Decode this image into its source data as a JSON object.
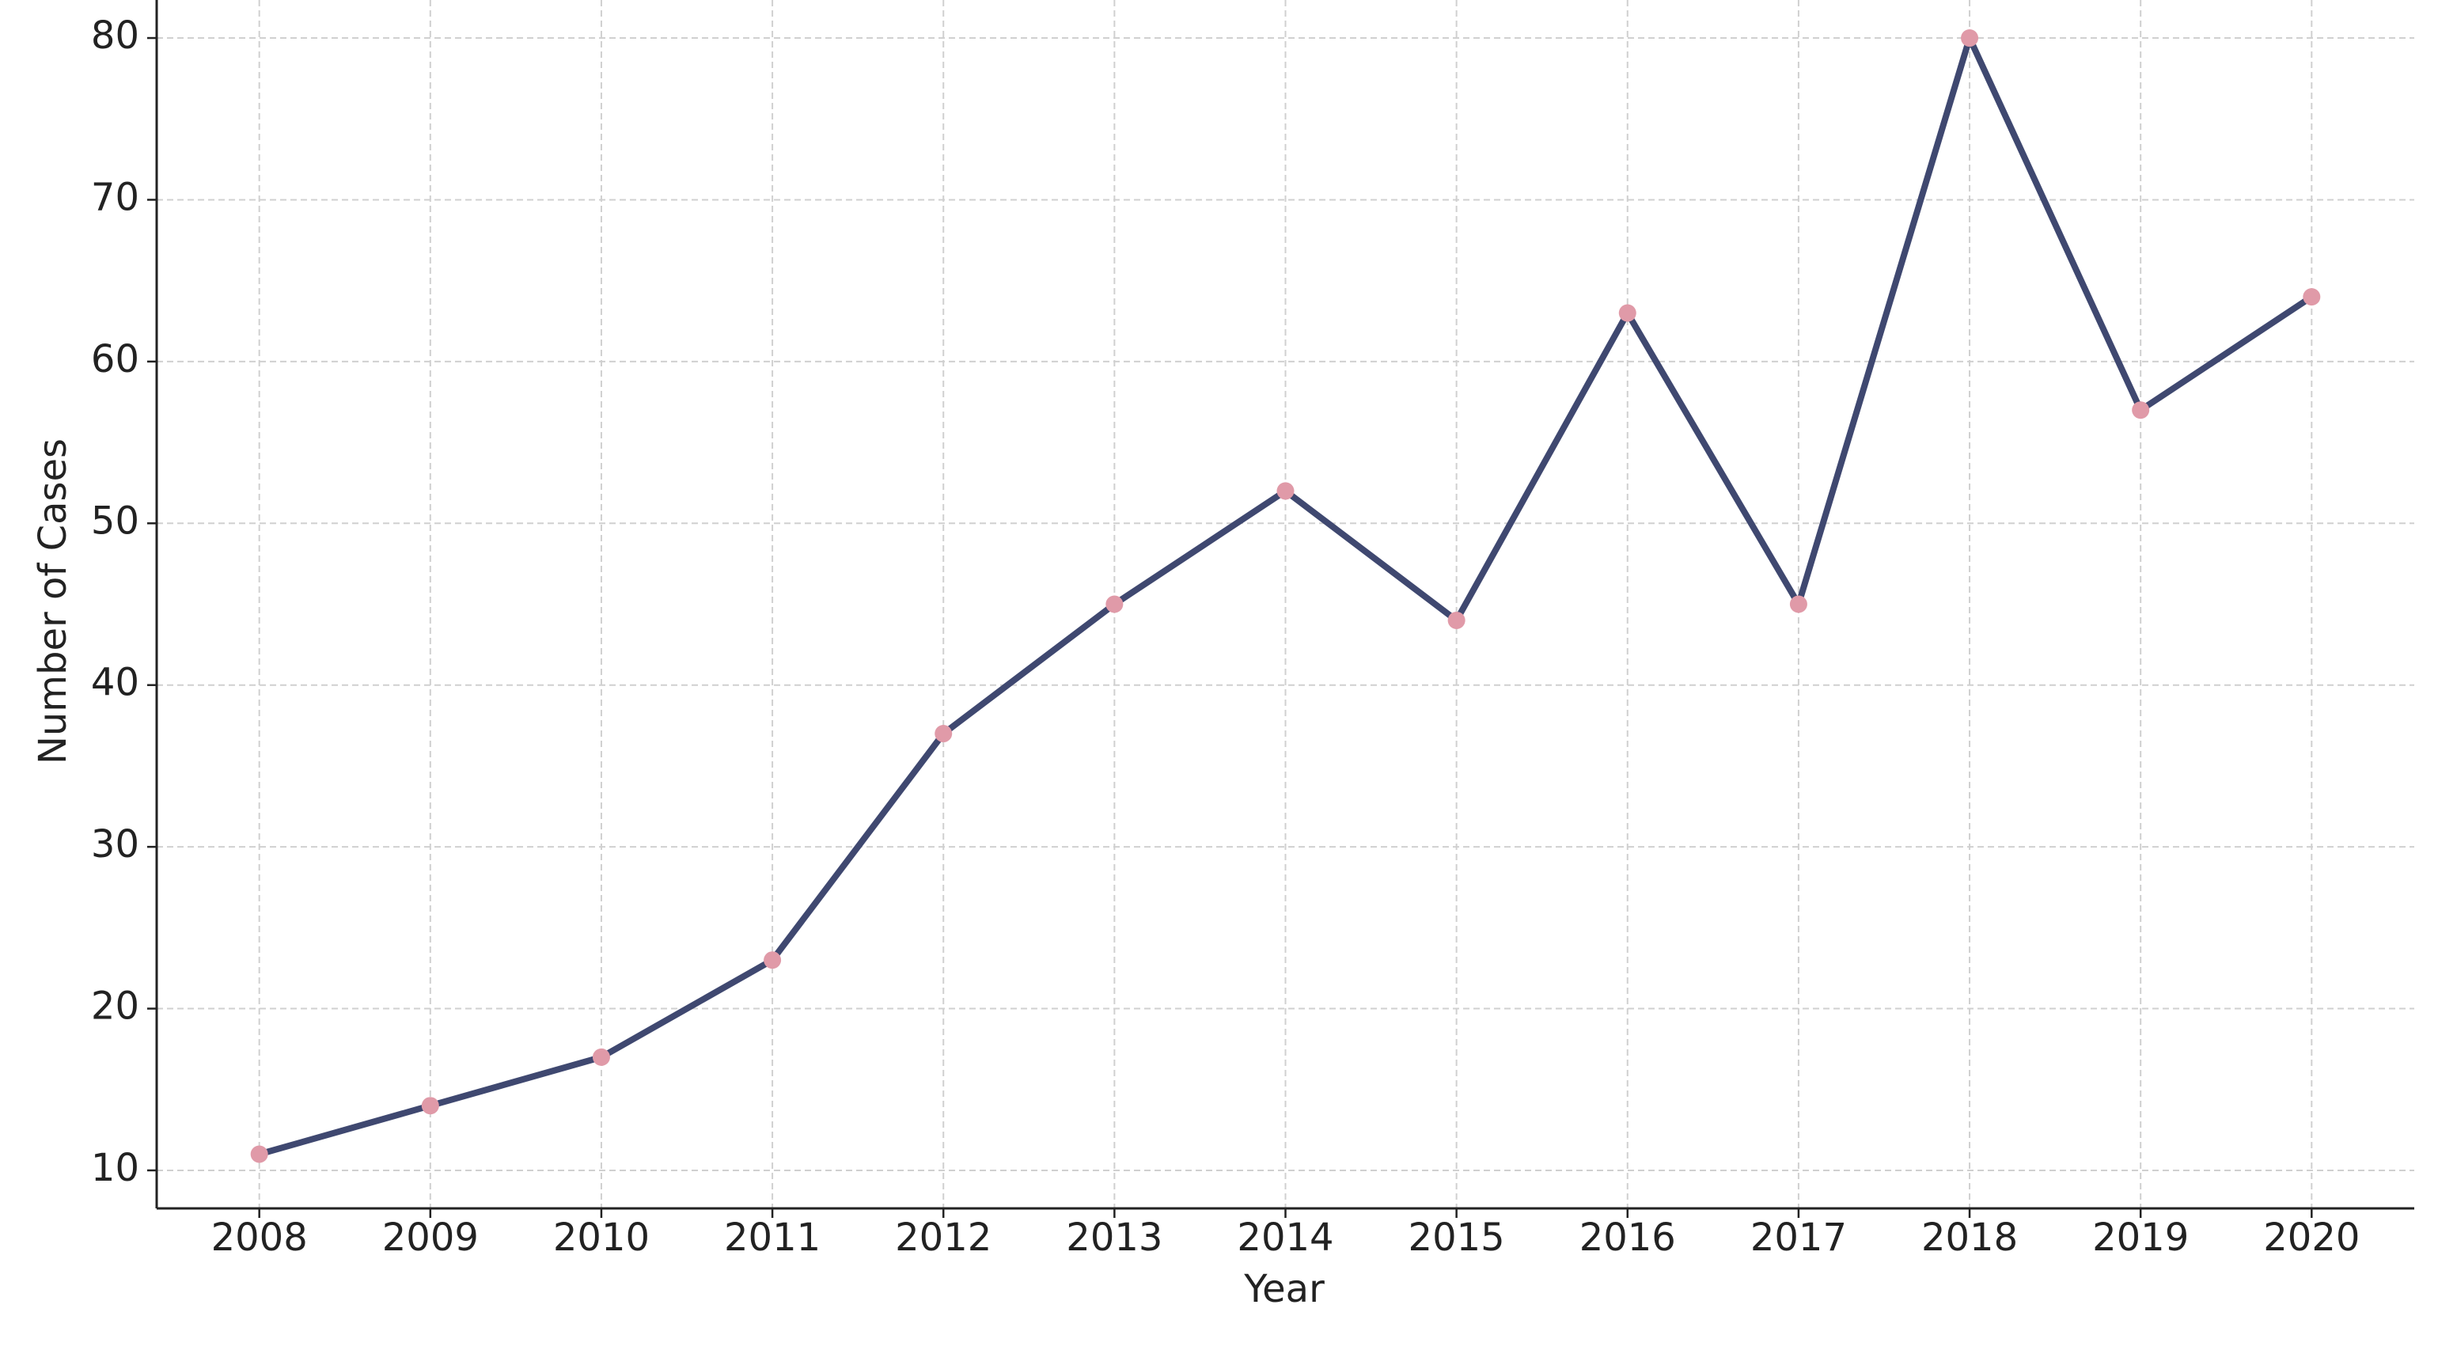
{
  "chart_data": {
    "type": "line",
    "x_label": "Year",
    "y_label": "Number of Cases",
    "x": [
      2008,
      2009,
      2010,
      2011,
      2012,
      2013,
      2014,
      2015,
      2016,
      2017,
      2018,
      2019,
      2020
    ],
    "series": [
      {
        "color": "#3f4870",
        "marker_color": "#e09aa8",
        "values": [
          11,
          14,
          17,
          23,
          37,
          45,
          52,
          44,
          63,
          45,
          80,
          57,
          64
        ]
      }
    ],
    "xlim": [
      2007.4,
      2020.6
    ],
    "ylim": [
      7.65,
      82.35
    ],
    "xticks": [
      2008,
      2009,
      2010,
      2011,
      2012,
      2013,
      2014,
      2015,
      2016,
      2017,
      2018,
      2019,
      2020
    ],
    "yticks": [
      10,
      20,
      30,
      40,
      50,
      60,
      70,
      80
    ],
    "grid": true
  }
}
